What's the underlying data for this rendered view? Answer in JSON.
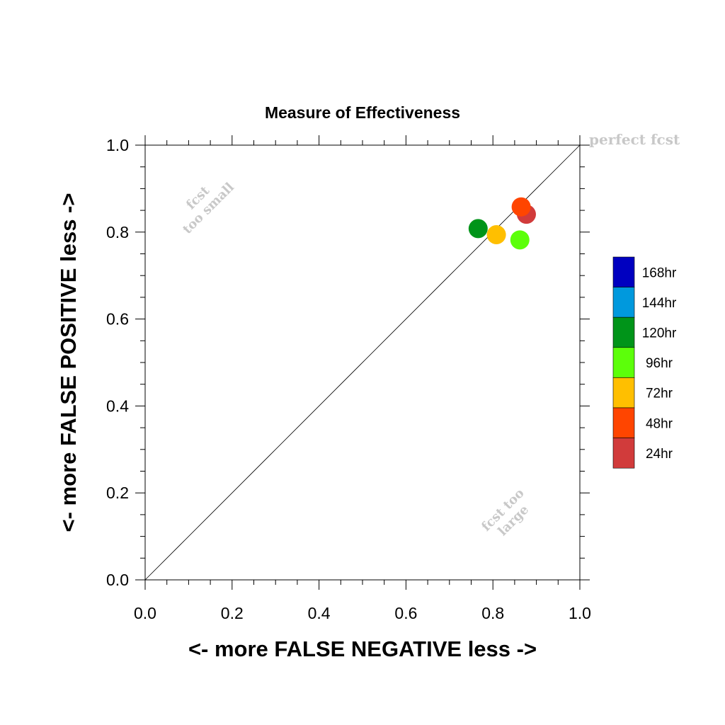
{
  "chart_data": {
    "type": "scatter",
    "title": "Measure of Effectiveness",
    "xlabel": "<- more   FALSE NEGATIVE   less ->",
    "ylabel": "<- more   FALSE POSITIVE   less ->",
    "xlim": [
      0.0,
      1.0
    ],
    "ylim": [
      0.0,
      1.0
    ],
    "xticks": [
      0.0,
      0.2,
      0.4,
      0.6,
      0.8,
      1.0
    ],
    "yticks": [
      0.0,
      0.2,
      0.4,
      0.6,
      0.8,
      1.0
    ],
    "xtick_labels": [
      "0.0",
      "0.2",
      "0.4",
      "0.6",
      "0.8",
      "1.0"
    ],
    "ytick_labels": [
      "0.0",
      "0.2",
      "0.4",
      "0.6",
      "0.8",
      "1.0"
    ],
    "grid": false,
    "diagonal_line": true,
    "annotations": {
      "perfect": "perfect fcst",
      "small_line1": "fcst",
      "small_line2": "too small",
      "large_line1": "fcst too",
      "large_line2": "large"
    },
    "legend_position": "right",
    "series": [
      {
        "name": "168hr",
        "color": "#0000c0",
        "points": []
      },
      {
        "name": "144hr",
        "color": "#0099dd",
        "points": []
      },
      {
        "name": "120hr",
        "color": "#009419",
        "points": [
          {
            "x": 0.766,
            "y": 0.808
          }
        ]
      },
      {
        "name": "96hr",
        "color": "#5cff0a",
        "points": [
          {
            "x": 0.862,
            "y": 0.782
          }
        ]
      },
      {
        "name": "72hr",
        "color": "#ffbf00",
        "points": [
          {
            "x": 0.808,
            "y": 0.794
          }
        ]
      },
      {
        "name": "48hr",
        "color": "#ff4500",
        "points": [
          {
            "x": 0.865,
            "y": 0.858
          }
        ]
      },
      {
        "name": "24hr",
        "color": "#d13b3b",
        "points": [
          {
            "x": 0.877,
            "y": 0.841
          }
        ]
      }
    ],
    "draw_order": [
      "24hr",
      "48hr",
      "120hr",
      "72hr",
      "96hr"
    ]
  }
}
